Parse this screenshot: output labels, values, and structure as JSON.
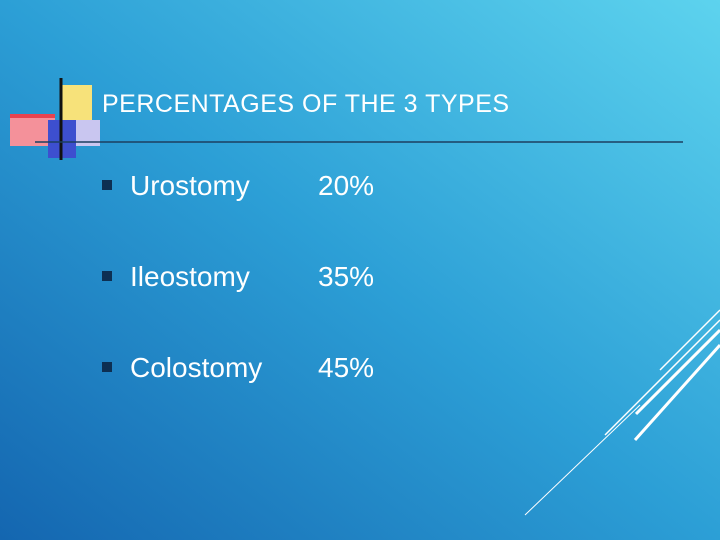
{
  "title": "PERCENTAGES OF THE 3 TYPES",
  "items": [
    {
      "label": "Urostomy",
      "value": "20%"
    },
    {
      "label": "Ileostomy",
      "value": "35%"
    },
    {
      "label": "Colostomy",
      "value": "45%"
    }
  ]
}
